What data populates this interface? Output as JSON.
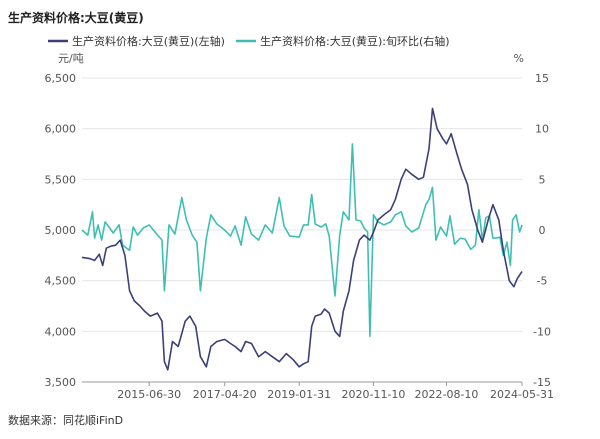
{
  "chart_data": {
    "type": "line",
    "title": "生产资料价格:大豆(黄豆)",
    "source": "数据来源：同花顺iFinD",
    "left_unit": "元/吨",
    "right_unit": "%",
    "left_axis": {
      "min": 3500,
      "max": 6500,
      "ticks": [
        "6,500",
        "6,000",
        "5,500",
        "5,000",
        "4,500",
        "4,000",
        "3,500"
      ],
      "tick_values": [
        6500,
        6000,
        5500,
        5000,
        4500,
        4000,
        3500
      ]
    },
    "right_axis": {
      "min": -15,
      "max": 15,
      "ticks": [
        "15",
        "10",
        "5",
        "0",
        "-5",
        "-10",
        "-15"
      ],
      "tick_values": [
        15,
        10,
        5,
        0,
        -5,
        -10,
        -15
      ]
    },
    "x_axis": {
      "start": "2013-11-20",
      "end": "2024-05-31",
      "ticks": [
        "2015-06-30",
        "2017-04-20",
        "2019-01-31",
        "2020-11-10",
        "2022-08-10",
        "2024-05-31"
      ]
    },
    "grid": true,
    "legend_position": "top",
    "colors": {
      "left_series": "#3c3f78",
      "right_series": "#3fbfb3"
    },
    "series": [
      {
        "name": "生产资料价格:大豆(黄豆)(左轴)",
        "axis": "left",
        "color": "#3c3f78",
        "points": [
          [
            "2013-11-20",
            4730
          ],
          [
            "2014-01-20",
            4720
          ],
          [
            "2014-03-10",
            4700
          ],
          [
            "2014-04-20",
            4760
          ],
          [
            "2014-05-20",
            4650
          ],
          [
            "2014-06-20",
            4820
          ],
          [
            "2014-07-30",
            4840
          ],
          [
            "2014-09-10",
            4850
          ],
          [
            "2014-10-20",
            4900
          ],
          [
            "2014-11-30",
            4750
          ],
          [
            "2015-01-10",
            4400
          ],
          [
            "2015-02-20",
            4300
          ],
          [
            "2015-04-10",
            4250
          ],
          [
            "2015-05-20",
            4200
          ],
          [
            "2015-07-10",
            4150
          ],
          [
            "2015-09-10",
            4180
          ],
          [
            "2015-10-20",
            4100
          ],
          [
            "2015-11-10",
            3700
          ],
          [
            "2015-12-10",
            3620
          ],
          [
            "2016-01-20",
            3900
          ],
          [
            "2016-03-10",
            3850
          ],
          [
            "2016-05-10",
            4100
          ],
          [
            "2016-06-20",
            4150
          ],
          [
            "2016-08-10",
            4050
          ],
          [
            "2016-09-20",
            3750
          ],
          [
            "2016-11-10",
            3650
          ],
          [
            "2016-12-20",
            3850
          ],
          [
            "2017-02-10",
            3900
          ],
          [
            "2017-04-20",
            3920
          ],
          [
            "2017-06-10",
            3880
          ],
          [
            "2017-07-20",
            3850
          ],
          [
            "2017-09-10",
            3800
          ],
          [
            "2017-10-20",
            3900
          ],
          [
            "2017-12-10",
            3880
          ],
          [
            "2018-02-10",
            3750
          ],
          [
            "2018-04-10",
            3800
          ],
          [
            "2018-06-10",
            3750
          ],
          [
            "2018-08-10",
            3700
          ],
          [
            "2018-10-10",
            3780
          ],
          [
            "2018-12-10",
            3720
          ],
          [
            "2019-01-31",
            3650
          ],
          [
            "2019-03-10",
            3680
          ],
          [
            "2019-04-20",
            3700
          ],
          [
            "2019-05-20",
            4050
          ],
          [
            "2019-06-20",
            4150
          ],
          [
            "2019-08-10",
            4170
          ],
          [
            "2019-09-10",
            4220
          ],
          [
            "2019-10-20",
            4180
          ],
          [
            "2019-12-10",
            4000
          ],
          [
            "2020-01-20",
            3950
          ],
          [
            "2020-02-20",
            4200
          ],
          [
            "2020-04-10",
            4400
          ],
          [
            "2020-05-20",
            4700
          ],
          [
            "2020-07-10",
            4900
          ],
          [
            "2020-08-20",
            4950
          ],
          [
            "2020-10-10",
            4900
          ],
          [
            "2020-11-10",
            4980
          ],
          [
            "2020-12-20",
            5100
          ],
          [
            "2021-02-10",
            5150
          ],
          [
            "2021-04-10",
            5200
          ],
          [
            "2021-05-20",
            5300
          ],
          [
            "2021-07-10",
            5500
          ],
          [
            "2021-08-20",
            5600
          ],
          [
            "2021-10-10",
            5550
          ],
          [
            "2021-12-10",
            5500
          ],
          [
            "2022-01-20",
            5520
          ],
          [
            "2022-03-10",
            5800
          ],
          [
            "2022-04-10",
            6200
          ],
          [
            "2022-05-20",
            6000
          ],
          [
            "2022-07-10",
            5900
          ],
          [
            "2022-08-10",
            5850
          ],
          [
            "2022-09-20",
            5950
          ],
          [
            "2022-11-10",
            5750
          ],
          [
            "2022-12-20",
            5600
          ],
          [
            "2023-02-10",
            5450
          ],
          [
            "2023-03-20",
            5200
          ],
          [
            "2023-05-10",
            5000
          ],
          [
            "2023-06-20",
            4880
          ],
          [
            "2023-08-10",
            5100
          ],
          [
            "2023-09-20",
            5250
          ],
          [
            "2023-11-10",
            5100
          ],
          [
            "2023-12-20",
            4800
          ],
          [
            "2024-02-10",
            4500
          ],
          [
            "2024-03-20",
            4440
          ],
          [
            "2024-04-20",
            4520
          ],
          [
            "2024-05-31",
            4590
          ]
        ]
      },
      {
        "name": "生产资料价格:大豆(黄豆):旬环比(右轴)",
        "axis": "right",
        "color": "#3fbfb3",
        "points": [
          [
            "2013-11-20",
            0.0
          ],
          [
            "2014-01-10",
            -0.5
          ],
          [
            "2014-02-20",
            1.8
          ],
          [
            "2014-03-10",
            -0.8
          ],
          [
            "2014-04-10",
            0.5
          ],
          [
            "2014-05-10",
            -1.0
          ],
          [
            "2014-06-10",
            0.8
          ],
          [
            "2014-07-20",
            0.2
          ],
          [
            "2014-08-20",
            -0.3
          ],
          [
            "2014-10-10",
            0.5
          ],
          [
            "2014-11-10",
            -1.5
          ],
          [
            "2015-01-10",
            -2.0
          ],
          [
            "2015-02-10",
            0.3
          ],
          [
            "2015-03-20",
            -0.5
          ],
          [
            "2015-05-10",
            0.2
          ],
          [
            "2015-06-30",
            0.5
          ],
          [
            "2015-08-20",
            -0.2
          ],
          [
            "2015-10-20",
            -1.0
          ],
          [
            "2015-11-10",
            -6.0
          ],
          [
            "2015-12-20",
            0.5
          ],
          [
            "2016-02-10",
            -0.4
          ],
          [
            "2016-04-10",
            3.2
          ],
          [
            "2016-05-20",
            1.0
          ],
          [
            "2016-07-10",
            -0.5
          ],
          [
            "2016-08-20",
            -1.2
          ],
          [
            "2016-09-20",
            -6.0
          ],
          [
            "2016-11-10",
            -0.8
          ],
          [
            "2016-12-20",
            1.5
          ],
          [
            "2017-02-10",
            0.6
          ],
          [
            "2017-04-20",
            0.0
          ],
          [
            "2017-06-10",
            -0.6
          ],
          [
            "2017-07-20",
            0.4
          ],
          [
            "2017-09-10",
            -1.5
          ],
          [
            "2017-10-20",
            1.3
          ],
          [
            "2017-12-10",
            -0.4
          ],
          [
            "2018-02-10",
            -1.0
          ],
          [
            "2018-04-10",
            0.5
          ],
          [
            "2018-06-10",
            -0.3
          ],
          [
            "2018-08-10",
            3.2
          ],
          [
            "2018-09-20",
            0.4
          ],
          [
            "2018-11-10",
            -0.6
          ],
          [
            "2019-01-31",
            -0.7
          ],
          [
            "2019-03-10",
            0.5
          ],
          [
            "2019-04-20",
            0.5
          ],
          [
            "2019-05-20",
            3.5
          ],
          [
            "2019-06-20",
            0.6
          ],
          [
            "2019-08-10",
            0.3
          ],
          [
            "2019-09-20",
            0.6
          ],
          [
            "2019-10-20",
            -0.6
          ],
          [
            "2019-12-10",
            -6.5
          ],
          [
            "2020-01-20",
            -0.5
          ],
          [
            "2020-02-20",
            1.8
          ],
          [
            "2020-04-10",
            1.0
          ],
          [
            "2020-05-10",
            8.5
          ],
          [
            "2020-06-10",
            1.0
          ],
          [
            "2020-07-20",
            0.9
          ],
          [
            "2020-08-20",
            0.2
          ],
          [
            "2020-09-20",
            -0.2
          ],
          [
            "2020-10-10",
            -10.5
          ],
          [
            "2020-11-10",
            1.5
          ],
          [
            "2020-12-20",
            0.8
          ],
          [
            "2021-02-10",
            0.5
          ],
          [
            "2021-04-10",
            0.8
          ],
          [
            "2021-05-20",
            1.5
          ],
          [
            "2021-07-10",
            1.8
          ],
          [
            "2021-08-20",
            0.4
          ],
          [
            "2021-10-10",
            -0.2
          ],
          [
            "2021-12-10",
            0.2
          ],
          [
            "2022-02-10",
            2.5
          ],
          [
            "2022-03-10",
            3.0
          ],
          [
            "2022-04-10",
            4.2
          ],
          [
            "2022-05-10",
            -1.0
          ],
          [
            "2022-06-20",
            0.3
          ],
          [
            "2022-08-10",
            -0.6
          ],
          [
            "2022-09-10",
            1.4
          ],
          [
            "2022-10-20",
            -1.4
          ],
          [
            "2022-12-10",
            -0.8
          ],
          [
            "2023-01-20",
            -0.9
          ],
          [
            "2023-03-10",
            -1.9
          ],
          [
            "2023-04-20",
            -1.5
          ],
          [
            "2023-05-20",
            2.0
          ],
          [
            "2023-06-20",
            -1.0
          ],
          [
            "2023-07-20",
            1.2
          ],
          [
            "2023-08-20",
            1.4
          ],
          [
            "2023-09-20",
            -0.8
          ],
          [
            "2023-10-20",
            -0.8
          ],
          [
            "2023-11-20",
            -0.7
          ],
          [
            "2023-12-20",
            -2.5
          ],
          [
            "2024-01-20",
            -1.2
          ],
          [
            "2024-02-20",
            -3.5
          ],
          [
            "2024-03-10",
            1.0
          ],
          [
            "2024-04-10",
            1.5
          ],
          [
            "2024-05-10",
            -0.2
          ],
          [
            "2024-05-31",
            0.5
          ]
        ]
      }
    ]
  }
}
